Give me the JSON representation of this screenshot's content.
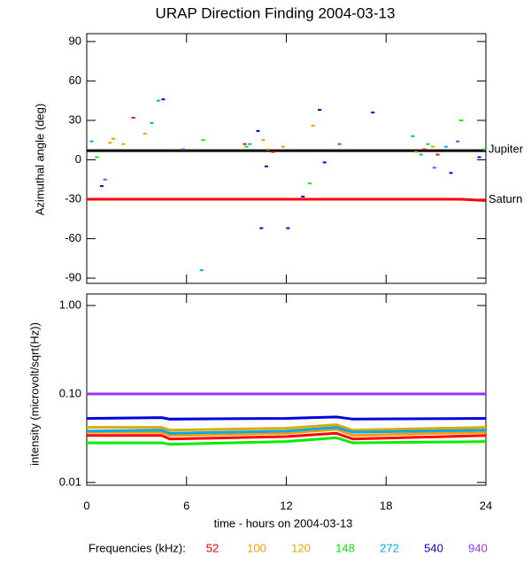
{
  "chart_data": [
    {
      "type": "scatter",
      "title": "URAP Direction Finding  2004-03-13",
      "y_label": "Azimuthal angle (deg)",
      "xlim": [
        0,
        24
      ],
      "xticks": [
        0,
        6,
        12,
        18,
        24
      ],
      "ylim": [
        -94,
        96
      ],
      "yticks": [
        -90,
        -60,
        -30,
        0,
        30,
        60,
        90
      ],
      "reference_lines": [
        {
          "label": "Jupiter",
          "color": "#000000",
          "x": [
            0,
            24
          ],
          "values": [
            7,
            7
          ]
        },
        {
          "label": "Saturn",
          "color": "#ff0000",
          "x": [
            0,
            22.5,
            24
          ],
          "values": [
            -30,
            -30,
            -31
          ]
        }
      ],
      "series": [
        {
          "color": "#ff0000",
          "x": [
            2.8,
            9.5,
            11.2,
            20.3,
            21.1
          ],
          "values": [
            32,
            12,
            6,
            8,
            4
          ]
        },
        {
          "color": "#ff9900",
          "x": [
            1.4,
            3.5,
            10.6,
            11.8,
            13.6
          ],
          "values": [
            13,
            20,
            15,
            10,
            26
          ]
        },
        {
          "color": "#ddaa00",
          "x": [
            1.6,
            2.2,
            10.9,
            19.8,
            20.8
          ],
          "values": [
            16,
            12,
            8,
            6,
            10
          ]
        },
        {
          "color": "#00ee00",
          "x": [
            0.6,
            7.0,
            9.6,
            13.4,
            20.5,
            22.5,
            23.9
          ],
          "values": [
            2,
            15,
            10,
            -18,
            12,
            30,
            8
          ]
        },
        {
          "color": "#00aaee",
          "x": [
            0.3,
            3.9,
            4.3,
            9.8,
            19.6,
            20.1,
            21.6,
            6.9
          ],
          "values": [
            14,
            28,
            45,
            12,
            18,
            4,
            10,
            -84
          ]
        },
        {
          "color": "#0000dd",
          "x": [
            0.9,
            4.6,
            10.3,
            10.8,
            13.0,
            14.0,
            14.3,
            17.2,
            21.9,
            23.6,
            12.1,
            10.5
          ],
          "values": [
            -20,
            46,
            22,
            -5,
            -28,
            38,
            -2,
            36,
            -10,
            2,
            -52,
            -52
          ]
        },
        {
          "color": "#9933ff",
          "x": [
            1.1,
            5.8,
            15.2,
            20.9,
            22.3
          ],
          "values": [
            -15,
            8,
            12,
            -6,
            14
          ]
        }
      ]
    },
    {
      "type": "line",
      "y_label": "intensity (microvolt/sqrt(Hz))",
      "x_label": "time - hours on 2004-03-13",
      "legend_title": "Frequencies (kHz):",
      "log_y": true,
      "xlim": [
        0,
        24
      ],
      "xticks": [
        0,
        6,
        12,
        18,
        24
      ],
      "ylim": [
        0.0093,
        1.35
      ],
      "yticks": [
        0.01,
        {
          "value": 0.1,
          "label": "0.10"
        },
        {
          "value": 1,
          "label": "1.00"
        }
      ],
      "x": [
        0,
        4.5,
        5,
        12,
        15,
        16,
        24
      ],
      "series": [
        {
          "name": "52",
          "color": "#ff0000",
          "values": [
            0.034,
            0.034,
            0.031,
            0.033,
            0.036,
            0.031,
            0.034
          ]
        },
        {
          "name": "100",
          "color": "#ff9900",
          "values": [
            0.037,
            0.037,
            0.034,
            0.036,
            0.04,
            0.034,
            0.037
          ]
        },
        {
          "name": "120",
          "color": "#ddaa00",
          "values": [
            0.042,
            0.042,
            0.039,
            0.041,
            0.045,
            0.039,
            0.042
          ]
        },
        {
          "name": "148",
          "color": "#00ee00",
          "values": [
            0.028,
            0.028,
            0.027,
            0.029,
            0.032,
            0.028,
            0.029
          ]
        },
        {
          "name": "272",
          "color": "#00aaee",
          "values": [
            0.038,
            0.039,
            0.036,
            0.038,
            0.042,
            0.037,
            0.039
          ]
        },
        {
          "name": "540",
          "color": "#0000dd",
          "values": [
            0.053,
            0.054,
            0.052,
            0.053,
            0.055,
            0.052,
            0.053
          ]
        },
        {
          "name": "940",
          "color": "#9933ff",
          "values": [
            0.1,
            0.1,
            0.1,
            0.1,
            0.1,
            0.1,
            0.1
          ]
        }
      ]
    }
  ]
}
